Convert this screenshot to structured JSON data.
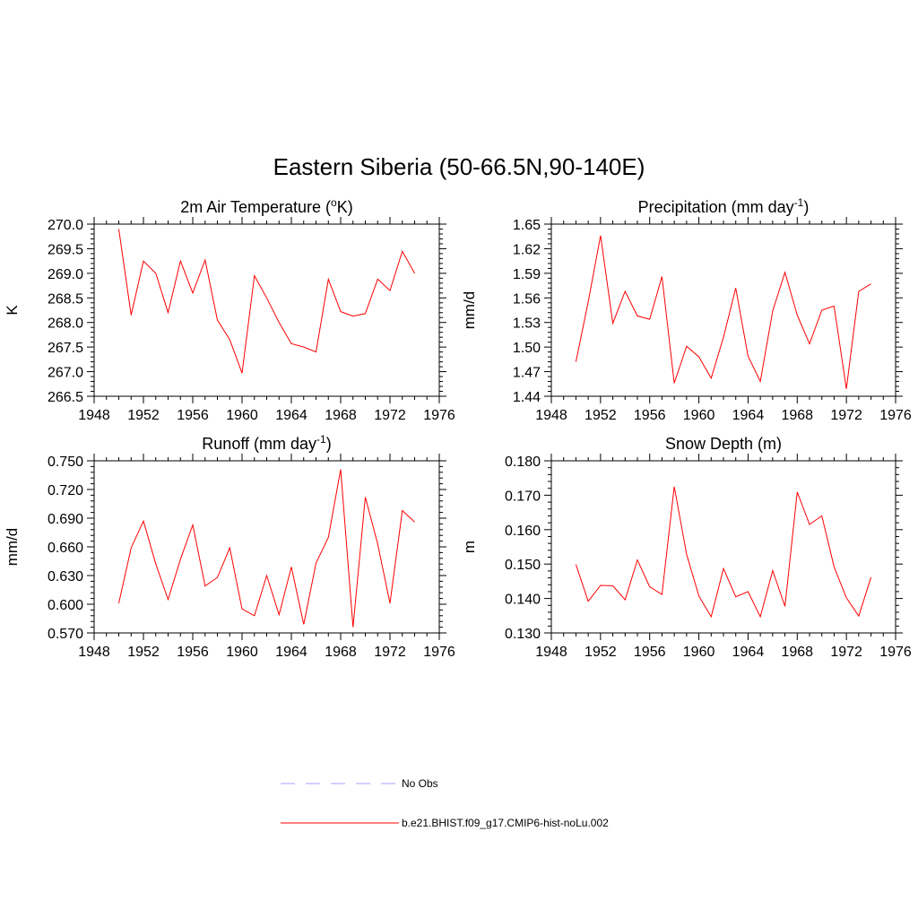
{
  "title": "Eastern Siberia (50-66.5N,90-140E)",
  "legend": [
    {
      "label": "No Obs",
      "color": "#a0a0ff",
      "dash": "dashed"
    },
    {
      "label": "b.e21.BHIST.f09_g17.CMIP6-hist-noLu.002",
      "color": "#ff0000",
      "dash": "solid"
    }
  ],
  "chart_data": [
    {
      "type": "line",
      "title": "2m Air Temperature (",
      "title_sup": "o",
      "title_end": "K)",
      "ylabel": "K",
      "xlim": [
        1948,
        1976
      ],
      "ylim": [
        266.5,
        270.0
      ],
      "xticks": [
        1948,
        1952,
        1956,
        1960,
        1964,
        1968,
        1972,
        1976
      ],
      "xtick_labels": [
        "1948",
        "1952",
        "1956",
        "1960",
        "1964",
        "1968",
        "1972",
        "1976"
      ],
      "yticks": [
        266.5,
        267.0,
        267.5,
        268.0,
        268.5,
        269.0,
        269.5,
        270.0
      ],
      "ytick_labels": [
        "266.5",
        "267.0",
        "267.5",
        "268.0",
        "268.5",
        "269.0",
        "269.5",
        "270.0"
      ],
      "x": [
        1950,
        1951,
        1952,
        1953,
        1954,
        1955,
        1956,
        1957,
        1958,
        1959,
        1960,
        1961,
        1962,
        1963,
        1964,
        1965,
        1966,
        1967,
        1968,
        1969,
        1970,
        1971,
        1972,
        1973,
        1974
      ],
      "series": [
        {
          "color": "#ff0000",
          "values": [
            269.9,
            268.15,
            269.25,
            269.0,
            268.2,
            269.25,
            268.6,
            269.27,
            268.05,
            267.65,
            266.97,
            268.95,
            268.5,
            268.0,
            267.57,
            267.5,
            267.4,
            268.88,
            268.22,
            268.13,
            268.18,
            268.88,
            268.65,
            269.45,
            269.0
          ]
        }
      ]
    },
    {
      "type": "line",
      "title": "Precipitation (mm day",
      "title_sup": "-1",
      "title_end": ")",
      "ylabel": "mm/d",
      "xlim": [
        1948,
        1976
      ],
      "ylim": [
        1.44,
        1.65
      ],
      "xticks": [
        1948,
        1952,
        1956,
        1960,
        1964,
        1968,
        1972,
        1976
      ],
      "xtick_labels": [
        "1948",
        "1952",
        "1956",
        "1960",
        "1964",
        "1968",
        "1972",
        "1976"
      ],
      "yticks": [
        1.44,
        1.47,
        1.5,
        1.53,
        1.56,
        1.59,
        1.62,
        1.65
      ],
      "ytick_labels": [
        "1.44",
        "1.47",
        "1.50",
        "1.53",
        "1.56",
        "1.59",
        "1.62",
        "1.65"
      ],
      "x": [
        1950,
        1951,
        1952,
        1953,
        1954,
        1955,
        1956,
        1957,
        1958,
        1959,
        1960,
        1961,
        1962,
        1963,
        1964,
        1965,
        1966,
        1967,
        1968,
        1969,
        1970,
        1971,
        1972,
        1973,
        1974
      ],
      "series": [
        {
          "color": "#ff0000",
          "values": [
            1.482,
            1.555,
            1.636,
            1.529,
            1.568,
            1.538,
            1.534,
            1.586,
            1.456,
            1.501,
            1.488,
            1.462,
            1.512,
            1.572,
            1.489,
            1.458,
            1.544,
            1.591,
            1.539,
            1.504,
            1.545,
            1.55,
            1.449,
            1.568,
            1.577
          ]
        }
      ]
    },
    {
      "type": "line",
      "title": "Runoff (mm day",
      "title_sup": "-1",
      "title_end": ")",
      "ylabel": "mm/d",
      "xlim": [
        1948,
        1976
      ],
      "ylim": [
        0.57,
        0.75
      ],
      "xticks": [
        1948,
        1952,
        1956,
        1960,
        1964,
        1968,
        1972,
        1976
      ],
      "xtick_labels": [
        "1948",
        "1952",
        "1956",
        "1960",
        "1964",
        "1968",
        "1972",
        "1976"
      ],
      "yticks": [
        0.57,
        0.6,
        0.63,
        0.66,
        0.69,
        0.72,
        0.75
      ],
      "ytick_labels": [
        "0.570",
        "0.600",
        "0.630",
        "0.660",
        "0.690",
        "0.720",
        "0.750"
      ],
      "x": [
        1950,
        1951,
        1952,
        1953,
        1954,
        1955,
        1956,
        1957,
        1958,
        1959,
        1960,
        1961,
        1962,
        1963,
        1964,
        1965,
        1966,
        1967,
        1968,
        1969,
        1970,
        1971,
        1972,
        1973,
        1974
      ],
      "series": [
        {
          "color": "#ff0000",
          "values": [
            0.601,
            0.659,
            0.687,
            0.642,
            0.605,
            0.647,
            0.683,
            0.619,
            0.628,
            0.659,
            0.595,
            0.588,
            0.63,
            0.589,
            0.639,
            0.579,
            0.643,
            0.67,
            0.741,
            0.576,
            0.712,
            0.663,
            0.601,
            0.698,
            0.686
          ]
        }
      ]
    },
    {
      "type": "line",
      "title": "Snow Depth (m)",
      "title_sup": "",
      "title_end": "",
      "ylabel": "m",
      "xlim": [
        1948,
        1976
      ],
      "ylim": [
        0.13,
        0.18
      ],
      "xticks": [
        1948,
        1952,
        1956,
        1960,
        1964,
        1968,
        1972,
        1976
      ],
      "xtick_labels": [
        "1948",
        "1952",
        "1956",
        "1960",
        "1964",
        "1968",
        "1972",
        "1976"
      ],
      "yticks": [
        0.13,
        0.14,
        0.15,
        0.16,
        0.17,
        0.18
      ],
      "ytick_labels": [
        "0.130",
        "0.140",
        "0.150",
        "0.160",
        "0.170",
        "0.180"
      ],
      "x": [
        1950,
        1951,
        1952,
        1953,
        1954,
        1955,
        1956,
        1957,
        1958,
        1959,
        1960,
        1961,
        1962,
        1963,
        1964,
        1965,
        1966,
        1967,
        1968,
        1969,
        1970,
        1971,
        1972,
        1973,
        1974
      ],
      "series": [
        {
          "color": "#ff0000",
          "values": [
            0.1499,
            0.1392,
            0.1438,
            0.1437,
            0.1396,
            0.1512,
            0.1434,
            0.1412,
            0.1725,
            0.1528,
            0.1407,
            0.1347,
            0.1487,
            0.1405,
            0.142,
            0.1347,
            0.1481,
            0.1377,
            0.1709,
            0.1615,
            0.164,
            0.1492,
            0.1402,
            0.1349,
            0.1462
          ]
        }
      ]
    }
  ]
}
